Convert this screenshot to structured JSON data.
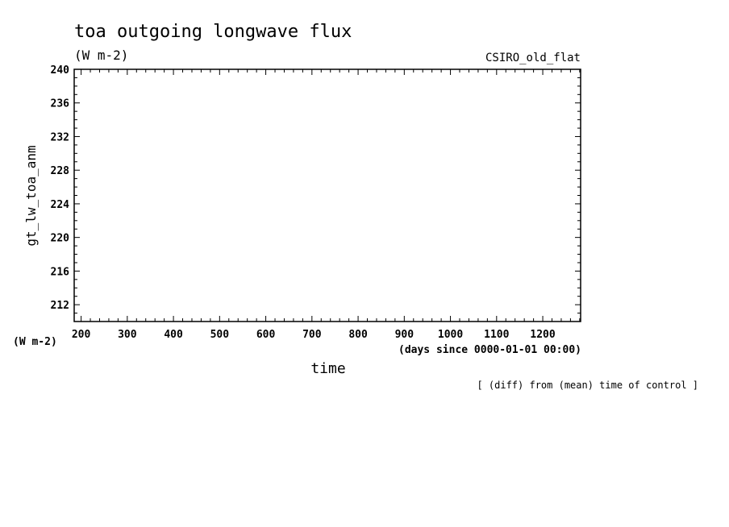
{
  "chart_data": {
    "type": "line",
    "title": "toa outgoing longwave flux",
    "subtitle": "(W m-2)",
    "model_label": "CSIRO_old_flat",
    "ylabel": "gt_lw_toa_anm",
    "yunits": "(W m-2)",
    "xlabel": "time",
    "xunits": "(days since 0000-01-01 00:00)",
    "footnote": "[ (diff) from (mean) time of control ]",
    "xlim": [
      185,
      1282
    ],
    "ylim": [
      210,
      240
    ],
    "xticks": [
      200,
      300,
      400,
      500,
      600,
      700,
      800,
      900,
      1000,
      1100,
      1200
    ],
    "yticks": [
      212,
      216,
      220,
      224,
      228,
      232,
      236,
      240
    ],
    "series": [],
    "grid": false
  }
}
